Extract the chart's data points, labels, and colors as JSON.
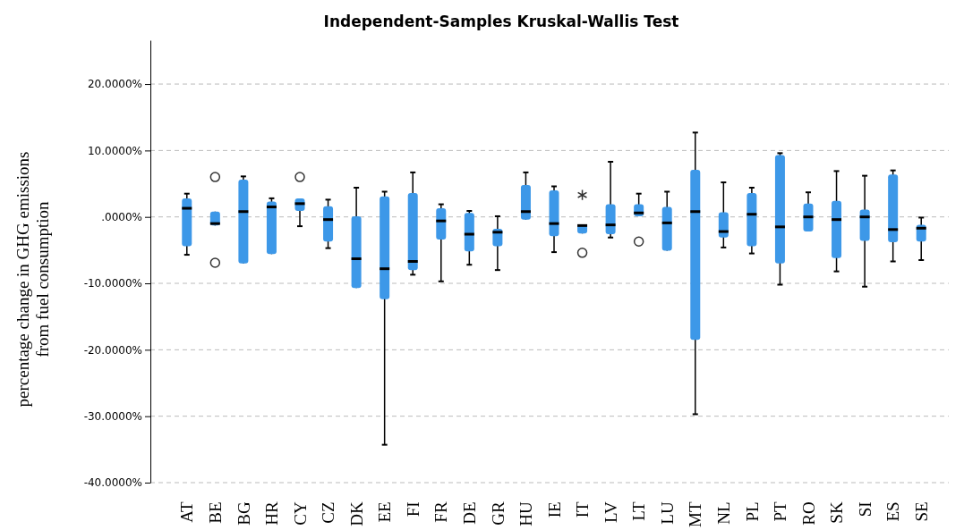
{
  "chart_data": {
    "type": "box",
    "title": "Independent-Samples Kruskal-Wallis Test",
    "ylabel": "percentage change in GHG emissions from fuel consumption",
    "categories": [
      "AT",
      "BE",
      "BG",
      "HR",
      "CY",
      "CZ",
      "DK",
      "EE",
      "FI",
      "FR",
      "DE",
      "GR",
      "HU",
      "IE",
      "IT",
      "LV",
      "LT",
      "LU",
      "MT",
      "NL",
      "PL",
      "PT",
      "RO",
      "SK",
      "SI",
      "ES",
      "SE"
    ],
    "color": "#3d98e8",
    "boxes": [
      {
        "low": -5.7,
        "q1": -4.4,
        "median": 1.3,
        "q3": 2.8,
        "high": 3.5
      },
      {
        "low": -1.3,
        "q1": -1.3,
        "median": -1.0,
        "q3": 0.8,
        "high": 0.8,
        "outliers": [
          6.0,
          -6.9
        ]
      },
      {
        "low": -7.0,
        "q1": -7.0,
        "median": 0.8,
        "q3": 5.6,
        "high": 6.1
      },
      {
        "low": -5.6,
        "q1": -5.6,
        "median": 1.5,
        "q3": 2.3,
        "high": 2.8
      },
      {
        "low": -1.4,
        "q1": 0.9,
        "median": 2.0,
        "q3": 2.8,
        "high": 2.8,
        "outliers": [
          6.0
        ]
      },
      {
        "low": -4.7,
        "q1": -3.7,
        "median": -0.4,
        "q3": 1.6,
        "high": 2.6
      },
      {
        "low": -10.7,
        "q1": -10.7,
        "median": -6.3,
        "q3": 0.1,
        "high": 4.4
      },
      {
        "low": -34.3,
        "q1": -12.4,
        "median": -7.8,
        "q3": 3.1,
        "high": 3.8
      },
      {
        "low": -8.7,
        "q1": -8.0,
        "median": -6.7,
        "q3": 3.6,
        "high": 6.7
      },
      {
        "low": -9.7,
        "q1": -3.4,
        "median": -0.6,
        "q3": 1.3,
        "high": 1.9
      },
      {
        "low": -7.2,
        "q1": -5.2,
        "median": -2.6,
        "q3": 0.6,
        "high": 0.9
      },
      {
        "low": -8.0,
        "q1": -4.4,
        "median": -2.3,
        "q3": -1.8,
        "high": 0.1
      },
      {
        "low": -0.4,
        "q1": -0.4,
        "median": 0.8,
        "q3": 4.8,
        "high": 6.7
      },
      {
        "low": -5.3,
        "q1": -2.9,
        "median": -1.0,
        "q3": 4.0,
        "high": 4.6
      },
      {
        "low": -2.5,
        "q1": -2.5,
        "median": -1.3,
        "q3": -1.2,
        "high": -1.2,
        "outliers": [
          3.3,
          -5.4
        ]
      },
      {
        "low": -3.1,
        "q1": -2.6,
        "median": -1.2,
        "q3": 1.9,
        "high": 8.3
      },
      {
        "low": 0.1,
        "q1": 0.1,
        "median": 0.6,
        "q3": 1.9,
        "high": 3.5,
        "outliers": [
          -3.7
        ]
      },
      {
        "low": -5.1,
        "q1": -5.1,
        "median": -0.9,
        "q3": 1.5,
        "high": 3.8
      },
      {
        "low": -29.7,
        "q1": -18.5,
        "median": 0.8,
        "q3": 7.1,
        "high": 12.7
      },
      {
        "low": -4.6,
        "q1": -3.1,
        "median": -2.2,
        "q3": 0.7,
        "high": 5.2
      },
      {
        "low": -5.5,
        "q1": -4.4,
        "median": 0.4,
        "q3": 3.6,
        "high": 4.4
      },
      {
        "low": -10.2,
        "q1": -7.0,
        "median": -1.5,
        "q3": 9.3,
        "high": 9.6
      },
      {
        "low": -2.2,
        "q1": -2.2,
        "median": 0.0,
        "q3": 2.0,
        "high": 3.7
      },
      {
        "low": -8.2,
        "q1": -6.2,
        "median": -0.4,
        "q3": 2.4,
        "high": 6.9
      },
      {
        "low": -10.5,
        "q1": -3.6,
        "median": 0.0,
        "q3": 1.1,
        "high": 6.2
      },
      {
        "low": -6.7,
        "q1": -3.8,
        "median": -1.9,
        "q3": 6.4,
        "high": 7.0
      },
      {
        "low": -6.5,
        "q1": -3.7,
        "median": -1.7,
        "q3": -1.2,
        "high": -0.1
      }
    ],
    "ylim": [
      -40,
      26.6
    ],
    "yticks": [
      {
        "value": -40,
        "label": "-40.0000%"
      },
      {
        "value": -30,
        "label": "-30.0000%"
      },
      {
        "value": -20,
        "label": "-20.0000%"
      },
      {
        "value": -10,
        "label": "-10.0000%"
      },
      {
        "value": 0,
        "label": ".0000%"
      },
      {
        "value": 10,
        "label": "10.0000%"
      },
      {
        "value": 20,
        "label": "20.0000%"
      }
    ],
    "grid": "y"
  }
}
